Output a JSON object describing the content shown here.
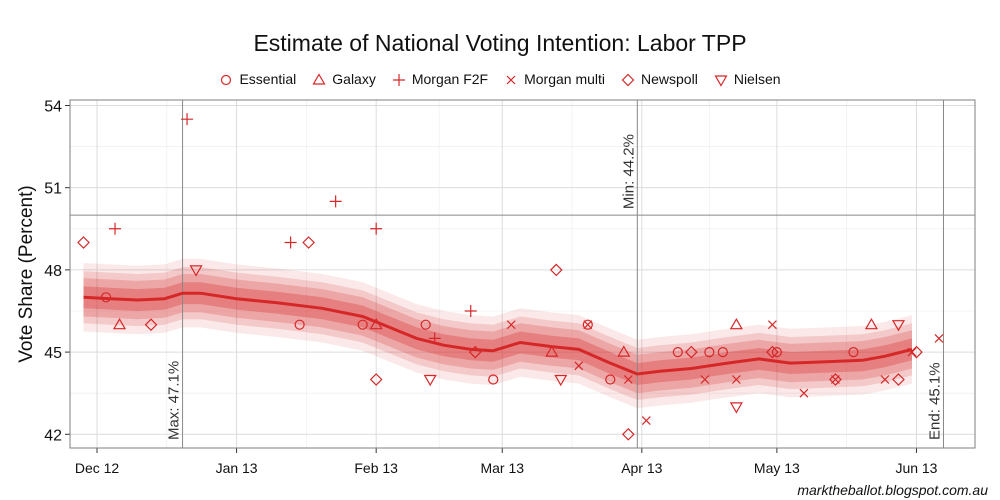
{
  "chart_data": {
    "type": "line",
    "title": "Estimate of National Voting Intention: Labor TPP",
    "ylabel": "Vote Share (Percent)",
    "xlabel": "",
    "ylim": [
      41.5,
      54.2
    ],
    "yticks": [
      42,
      45,
      48,
      51,
      54
    ],
    "xlim": [
      "2012-11-25",
      "2013-06-14"
    ],
    "xticks": [
      {
        "date": "2012-12-01",
        "label": "Dec 12"
      },
      {
        "date": "2013-01-01",
        "label": "Jan 13"
      },
      {
        "date": "2013-02-01",
        "label": "Feb 13"
      },
      {
        "date": "2013-03-01",
        "label": "Mar 13"
      },
      {
        "date": "2013-04-01",
        "label": "Apr 13"
      },
      {
        "date": "2013-05-01",
        "label": "May 13"
      },
      {
        "date": "2013-06-01",
        "label": "Jun 13"
      }
    ],
    "grid": true,
    "legend_position": "top",
    "colors": {
      "series": "#d62728",
      "grid_major": "#dcdcdc",
      "grid_minor": "#f0f0f0",
      "reference": "#888888"
    },
    "trend": {
      "name": "",
      "points": [
        [
          "2012-11-28",
          47.0
        ],
        [
          "2012-12-04",
          46.95
        ],
        [
          "2012-12-10",
          46.9
        ],
        [
          "2012-12-16",
          46.95
        ],
        [
          "2012-12-20",
          47.15
        ],
        [
          "2012-12-24",
          47.15
        ],
        [
          "2013-01-01",
          46.95
        ],
        [
          "2013-01-10",
          46.8
        ],
        [
          "2013-01-20",
          46.6
        ],
        [
          "2013-01-29",
          46.3
        ],
        [
          "2013-02-04",
          45.9
        ],
        [
          "2013-02-10",
          45.5
        ],
        [
          "2013-02-16",
          45.25
        ],
        [
          "2013-02-22",
          45.1
        ],
        [
          "2013-02-27",
          45.05
        ],
        [
          "2013-03-05",
          45.35
        ],
        [
          "2013-03-12",
          45.2
        ],
        [
          "2013-03-18",
          45.1
        ],
        [
          "2013-03-25",
          44.6
        ],
        [
          "2013-03-31",
          44.2
        ],
        [
          "2013-04-05",
          44.3
        ],
        [
          "2013-04-12",
          44.4
        ],
        [
          "2013-04-20",
          44.6
        ],
        [
          "2013-04-27",
          44.75
        ],
        [
          "2013-05-04",
          44.6
        ],
        [
          "2013-05-12",
          44.65
        ],
        [
          "2013-05-20",
          44.7
        ],
        [
          "2013-05-25",
          44.85
        ],
        [
          "2013-05-31",
          45.1
        ]
      ],
      "bands": [
        {
          "level": "80%",
          "halfwidth": 0.4
        },
        {
          "level": "90%",
          "halfwidth": 0.7
        },
        {
          "level": "95%",
          "halfwidth": 0.95
        },
        {
          "level": "99%",
          "halfwidth": 1.25
        }
      ]
    },
    "polls": [
      {
        "name": "Essential",
        "symbol": "circle",
        "points": [
          [
            "2012-12-03",
            47.0
          ],
          [
            "2013-01-29",
            46.0
          ],
          [
            "2013-02-27",
            44.0
          ],
          [
            "2013-03-25",
            44.0
          ],
          [
            "2013-03-20",
            46.0
          ],
          [
            "2013-02-12",
            46.0
          ],
          [
            "2013-01-15",
            46.0
          ],
          [
            "2013-04-19",
            45.0
          ],
          [
            "2013-05-01",
            45.0
          ],
          [
            "2013-04-16",
            45.0
          ],
          [
            "2013-05-18",
            45.0
          ],
          [
            "2013-04-09",
            45.0
          ]
        ]
      },
      {
        "name": "Galaxy",
        "symbol": "triangle-up",
        "points": [
          [
            "2012-12-06",
            46.0
          ],
          [
            "2013-02-01",
            46.0
          ],
          [
            "2013-03-12",
            45.0
          ],
          [
            "2013-03-28",
            45.0
          ],
          [
            "2013-04-22",
            46.0
          ],
          [
            "2013-05-22",
            46.0
          ]
        ]
      },
      {
        "name": "Morgan F2F",
        "symbol": "plus",
        "points": [
          [
            "2012-12-05",
            49.5
          ],
          [
            "2012-12-21",
            53.5
          ],
          [
            "2013-01-13",
            49.0
          ],
          [
            "2013-01-23",
            50.5
          ],
          [
            "2013-02-01",
            49.5
          ],
          [
            "2013-02-14",
            45.5
          ],
          [
            "2013-02-22",
            46.5
          ]
        ]
      },
      {
        "name": "Morgan multi",
        "symbol": "x",
        "points": [
          [
            "2013-03-03",
            46.0
          ],
          [
            "2013-03-18",
            44.5
          ],
          [
            "2013-03-20",
            46.0
          ],
          [
            "2013-03-29",
            44.0
          ],
          [
            "2013-04-02",
            42.5
          ],
          [
            "2013-04-15",
            44.0
          ],
          [
            "2013-04-22",
            44.0
          ],
          [
            "2013-04-30",
            46.0
          ],
          [
            "2013-05-07",
            43.5
          ],
          [
            "2013-05-14",
            44.0
          ],
          [
            "2013-05-25",
            44.0
          ],
          [
            "2013-05-31",
            45.0
          ],
          [
            "2013-06-06",
            45.5
          ]
        ]
      },
      {
        "name": "Newspoll",
        "symbol": "diamond",
        "points": [
          [
            "2012-11-28",
            49.0
          ],
          [
            "2012-12-13",
            46.0
          ],
          [
            "2013-01-17",
            49.0
          ],
          [
            "2013-02-01",
            44.0
          ],
          [
            "2013-02-23",
            45.0
          ],
          [
            "2013-03-13",
            48.0
          ],
          [
            "2013-03-29",
            42.0
          ],
          [
            "2013-04-12",
            45.0
          ],
          [
            "2013-04-30",
            45.0
          ],
          [
            "2013-05-14",
            44.0
          ],
          [
            "2013-05-28",
            44.0
          ],
          [
            "2013-06-01",
            45.0
          ]
        ]
      },
      {
        "name": "Nielsen",
        "symbol": "triangle-down",
        "points": [
          [
            "2012-12-23",
            48.0
          ],
          [
            "2013-02-13",
            44.0
          ],
          [
            "2013-03-14",
            44.0
          ],
          [
            "2013-04-22",
            43.0
          ],
          [
            "2013-05-28",
            46.0
          ]
        ]
      }
    ],
    "reference_lines": [
      {
        "orientation": "horizontal",
        "value": 50.0,
        "label": ""
      },
      {
        "orientation": "vertical",
        "date": "2012-12-20",
        "label": "Max: 47.1%"
      },
      {
        "orientation": "vertical",
        "date": "2013-03-31",
        "label": "Min: 44.2%"
      },
      {
        "orientation": "vertical",
        "date": "2013-06-07",
        "label": "End: 45.1%"
      }
    ]
  },
  "source_credit": "marktheballot.blogspot.com.au"
}
